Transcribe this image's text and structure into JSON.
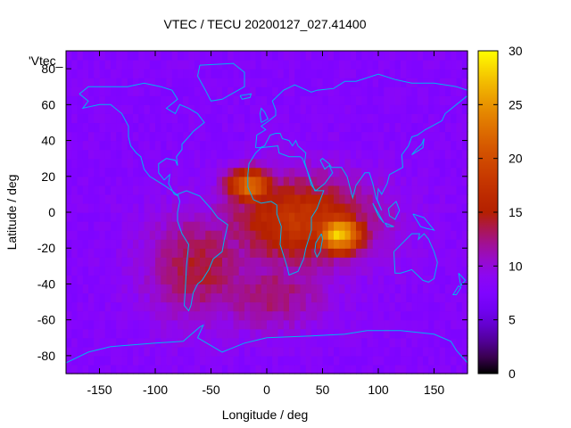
{
  "chart_data": {
    "type": "heatmap",
    "title": "VTEC / TECU 20200127_027.41400",
    "xlabel": "Longitude / deg",
    "ylabel": "Latitude / deg",
    "series_label": "'Vtec_",
    "xlim": [
      -180,
      180
    ],
    "ylim": [
      -90,
      90
    ],
    "x_ticks": [
      "-150",
      "-100",
      "-50",
      "0",
      "50",
      "100",
      "150"
    ],
    "y_ticks": [
      "-80",
      "-60",
      "-40",
      "-20",
      "0",
      "20",
      "40",
      "60",
      "80"
    ],
    "colorbar": {
      "range": [
        0,
        30
      ],
      "ticks": [
        "0",
        "5",
        "10",
        "15",
        "20",
        "25",
        "30"
      ],
      "palette": "black-purple-red-orange-yellow"
    },
    "grid_resolution_deg": 5,
    "background_level": 8,
    "field_peaks": [
      {
        "lon": 65,
        "lat": -12,
        "vtec": 28,
        "sigma_lon": 16,
        "sigma_lat": 8
      },
      {
        "lon": -15,
        "lat": 15,
        "vtec": 23,
        "sigma_lon": 15,
        "sigma_lat": 7
      },
      {
        "lon": 30,
        "lat": -5,
        "vtec": 18,
        "sigma_lon": 48,
        "sigma_lat": 18
      },
      {
        "lon": -60,
        "lat": -30,
        "vtec": 14,
        "sigma_lon": 35,
        "sigma_lat": 22
      },
      {
        "lon": 0,
        "lat": -45,
        "vtec": 13,
        "sigma_lon": 40,
        "sigma_lat": 15
      }
    ],
    "grid": false,
    "overlay": "coastlines"
  },
  "colors": {
    "coastline": "#00b4f0",
    "axis": "#000000"
  }
}
